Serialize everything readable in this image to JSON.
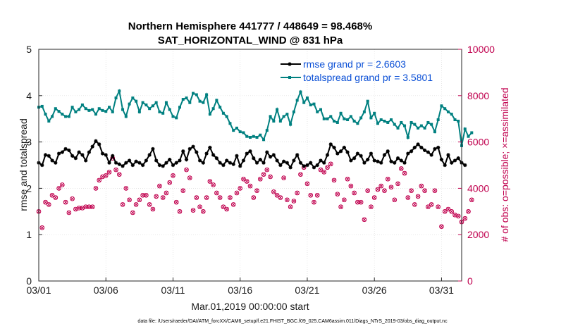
{
  "chart_data": {
    "type": "line",
    "title": "Northern Hemisphere 441777 / 448649 = 98.468%",
    "subtitle": "SAT_HORIZONTAL_WIND @ 831 hPa",
    "xlabel": "Mar.01,2019 00:00:00 start",
    "ylabel": "rmse and totalspread",
    "ylabel_right": "# of obs: o=possible; ×=assimilated",
    "footnote": "data file: /Users/raeder/DAI/ATM_forcXX/CAM6_setup/f.e21.FHIST_BGC.f09_025.CAM6assim.011/Diags_NTrS_2019-03/obs_diag_output.nc",
    "xlim": [
      0,
      31.5
    ],
    "ylim": [
      0,
      5
    ],
    "ylim_right": [
      0,
      10000
    ],
    "x_ticks": [
      0,
      5,
      10,
      15,
      20,
      25,
      30
    ],
    "x_tick_labels": [
      "03/01",
      "03/06",
      "03/11",
      "03/16",
      "03/21",
      "03/26",
      "03/31"
    ],
    "y_ticks": [
      "0",
      "1",
      "2",
      "3",
      "4",
      "5"
    ],
    "y_right_ticks": [
      "0",
      "2000",
      "4000",
      "6000",
      "8000",
      "10000"
    ],
    "grid": true,
    "legend_position": "top-right",
    "x_step_days": 0.25,
    "series": [
      {
        "name": "rmse grand pr = 2.6603",
        "color": "#000000",
        "marker": "asterisk",
        "axis": "left",
        "values": [
          2.55,
          2.5,
          2.72,
          2.7,
          2.6,
          2.55,
          2.75,
          2.78,
          2.85,
          2.82,
          2.7,
          2.65,
          2.78,
          2.72,
          2.6,
          2.78,
          2.9,
          3.02,
          2.95,
          2.75,
          2.72,
          2.55,
          2.7,
          2.55,
          2.52,
          2.48,
          2.55,
          2.6,
          2.5,
          2.58,
          2.55,
          2.5,
          2.6,
          2.72,
          2.85,
          2.6,
          2.5,
          2.48,
          2.55,
          2.62,
          2.5,
          2.55,
          2.6,
          2.8,
          2.62,
          2.85,
          2.9,
          2.78,
          2.6,
          2.55,
          2.75,
          2.88,
          2.72,
          2.65,
          2.55,
          2.5,
          2.6,
          2.55,
          2.52,
          2.7,
          2.48,
          2.6,
          2.75,
          2.8,
          2.65,
          2.55,
          2.62,
          2.55,
          2.78,
          2.68,
          2.72,
          2.6,
          2.5,
          2.58,
          2.55,
          2.45,
          2.6,
          2.72,
          2.55,
          2.48,
          2.5,
          2.55,
          2.45,
          2.5,
          2.6,
          2.55,
          2.72,
          2.95,
          2.88,
          2.75,
          2.8,
          2.88,
          2.78,
          2.6,
          2.65,
          2.75,
          2.7,
          2.55,
          2.62,
          2.75,
          2.6,
          2.58,
          2.55,
          2.72,
          2.8,
          2.58,
          2.55,
          2.65,
          2.6,
          2.55,
          2.75,
          2.8,
          2.88,
          2.95,
          2.88,
          2.82,
          2.78,
          2.72,
          2.85,
          2.88,
          2.62,
          2.5,
          2.72,
          2.55,
          2.6,
          2.65,
          2.55,
          2.5
        ]
      },
      {
        "name": "totalspread grand pr = 3.5801",
        "color": "#008080",
        "marker": "square",
        "axis": "left",
        "values": [
          3.75,
          3.77,
          3.6,
          3.45,
          3.55,
          3.72,
          3.66,
          3.6,
          3.55,
          3.55,
          3.75,
          3.65,
          3.7,
          3.8,
          3.72,
          3.68,
          3.7,
          3.6,
          3.72,
          3.68,
          3.66,
          3.75,
          3.65,
          3.95,
          4.1,
          3.7,
          3.55,
          3.82,
          3.95,
          3.88,
          3.65,
          3.85,
          3.8,
          3.72,
          3.78,
          3.85,
          3.65,
          3.62,
          3.85,
          3.7,
          3.55,
          3.52,
          3.75,
          3.92,
          3.95,
          3.85,
          4.05,
          4.02,
          3.88,
          3.85,
          4.02,
          3.6,
          3.72,
          3.9,
          3.75,
          3.62,
          3.55,
          3.4,
          3.25,
          3.3,
          3.22,
          3.2,
          3.12,
          3.1,
          3.12,
          3.1,
          3.15,
          3.05,
          3.25,
          3.55,
          3.45,
          3.7,
          3.45,
          3.55,
          3.6,
          3.38,
          3.65,
          3.9,
          4.08,
          3.85,
          3.95,
          3.8,
          3.82,
          3.65,
          3.7,
          3.5,
          3.5,
          3.55,
          3.45,
          3.42,
          3.62,
          3.5,
          3.48,
          3.55,
          3.45,
          3.4,
          3.52,
          3.65,
          3.88,
          3.52,
          3.62,
          3.4,
          3.48,
          3.45,
          3.42,
          3.48,
          3.38,
          3.3,
          3.42,
          3.35,
          3.1,
          3.42,
          3.38,
          3.3,
          3.35,
          3.3,
          3.42,
          3.38,
          3.22,
          3.48,
          3.78,
          3.72,
          3.65,
          3.6,
          3.48,
          3.45,
          2.92,
          3.28,
          3.12,
          3.2
        ]
      },
      {
        "name": "obs possible",
        "color": "#c0004e",
        "marker": "circle",
        "axis": "right",
        "values": [
          3000,
          2300,
          3400,
          3300,
          3700,
          3600,
          4000,
          4150,
          3400,
          2950,
          3550,
          3100,
          3150,
          3150,
          3200,
          3200,
          3200,
          4000,
          4350,
          4500,
          4550,
          4700,
          5300,
          4800,
          4600,
          3300,
          4000,
          3500,
          2950,
          3300,
          3500,
          3700,
          3700,
          3300,
          3100,
          3650,
          4100,
          3600,
          3800,
          4250,
          4550,
          3400,
          3000,
          3900,
          4800,
          4450,
          3050,
          3600,
          3200,
          3000,
          3600,
          4300,
          4150,
          3800,
          3600,
          3200,
          3100,
          3600,
          3300,
          3800,
          4000,
          4400,
          4300,
          4100,
          3600,
          3900,
          4400,
          4600,
          4800,
          4500,
          3850,
          3700,
          3600,
          4450,
          3500,
          3200,
          3450,
          3800,
          4600,
          4900,
          4200,
          3700,
          3400,
          3700,
          4800,
          4700,
          4900,
          5050,
          4350,
          3750,
          3200,
          3500,
          4400,
          4100,
          3800,
          3400,
          3400,
          2650,
          3900,
          3200,
          3600,
          3950,
          4100,
          3900,
          4400,
          4050,
          3500,
          4200,
          4850,
          4650,
          3600,
          3900,
          3300,
          3650,
          4100,
          3900,
          3200,
          3300,
          3900,
          3200,
          2350,
          3000,
          3100,
          3000,
          2850,
          2800,
          2550,
          2700,
          3000,
          3500
        ]
      },
      {
        "name": "obs assimilated",
        "color": "#c0004e",
        "marker": "x",
        "axis": "right",
        "values": [
          3000,
          2300,
          3400,
          3300,
          3700,
          3600,
          4000,
          4150,
          3400,
          2950,
          3550,
          3100,
          3150,
          3150,
          3200,
          3200,
          3200,
          4000,
          4350,
          4500,
          4550,
          4700,
          5300,
          4800,
          4600,
          3300,
          4000,
          3500,
          2950,
          3300,
          3500,
          3700,
          3700,
          3300,
          3100,
          3650,
          4100,
          3600,
          3800,
          4250,
          4550,
          3400,
          3000,
          3900,
          4800,
          4450,
          3050,
          3600,
          3200,
          3000,
          3600,
          4300,
          4150,
          3800,
          3600,
          3200,
          3100,
          3600,
          3300,
          3800,
          4000,
          4400,
          4300,
          4100,
          3600,
          3900,
          4400,
          4600,
          4800,
          4500,
          3850,
          3700,
          3600,
          4450,
          3500,
          3200,
          3450,
          3800,
          4600,
          4900,
          4200,
          3700,
          3400,
          3700,
          4800,
          4700,
          4900,
          5050,
          4350,
          3750,
          3200,
          3500,
          4400,
          4100,
          3800,
          3400,
          3400,
          2650,
          3900,
          3200,
          3600,
          3950,
          4100,
          3900,
          4400,
          4050,
          3500,
          4200,
          4850,
          4650,
          3600,
          3900,
          3300,
          3650,
          4100,
          3900,
          3200,
          3300,
          3900,
          3200,
          2350,
          3000,
          3100,
          3000,
          2850,
          2800,
          2550,
          2700,
          3000,
          3500
        ]
      }
    ]
  }
}
